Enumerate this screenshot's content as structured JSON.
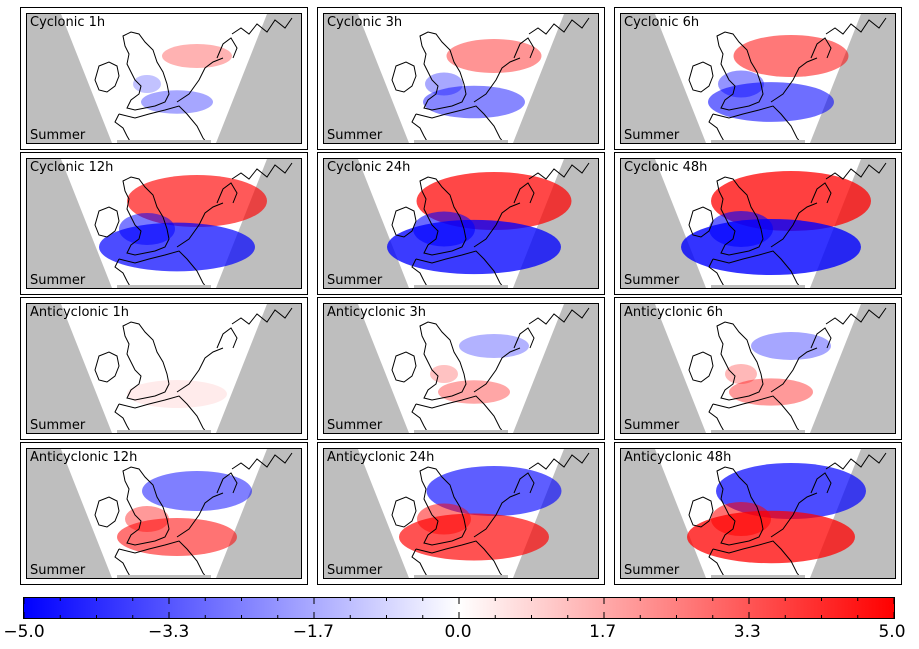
{
  "panels": [
    {
      "title": "Cyclonic  1h",
      "season": "Summer",
      "anomaly": 0.1
    },
    {
      "title": "Cyclonic  3h",
      "season": "Summer",
      "anomaly": 0.35
    },
    {
      "title": "Cyclonic  6h",
      "season": "Summer",
      "anomaly": 0.55
    },
    {
      "title": "Cyclonic  12h",
      "season": "Summer",
      "anomaly": 0.8
    },
    {
      "title": "Cyclonic  24h",
      "season": "Summer",
      "anomaly": 0.95
    },
    {
      "title": "Cyclonic  48h",
      "season": "Summer",
      "anomaly": 1.0
    },
    {
      "title": "Anticyclonic  1h",
      "season": "Summer",
      "anomaly": 0.03
    },
    {
      "title": "Anticyclonic  3h",
      "season": "Summer",
      "anomaly": 0.1
    },
    {
      "title": "Anticyclonic  6h",
      "season": "Summer",
      "anomaly": 0.2
    },
    {
      "title": "Anticyclonic  12h",
      "season": "Summer",
      "anomaly": 0.5
    },
    {
      "title": "Anticyclonic  24h",
      "season": "Summer",
      "anomaly": 0.75
    },
    {
      "title": "Anticyclonic  48h",
      "season": "Summer",
      "anomaly": 0.9
    }
  ],
  "colorbar": {
    "min": -5.0,
    "max": 5.0,
    "tick_labels": [
      "−5.0",
      "−3.3",
      "−1.7",
      "0.0",
      "1.7",
      "3.3",
      "5.0"
    ],
    "colors": {
      "low": "#0000ff",
      "mid": "#ffffff",
      "high": "#ff0000"
    }
  },
  "map_colors": {
    "mask": "#bebebe",
    "coast": "#000000"
  }
}
